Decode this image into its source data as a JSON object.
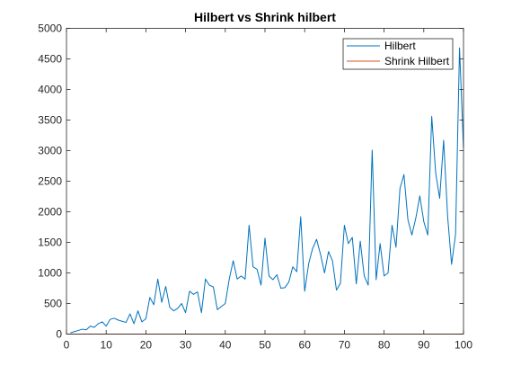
{
  "chart_data": {
    "type": "line",
    "title": "Hilbert vs Shrink hilbert",
    "xlabel": "",
    "ylabel": "",
    "xlim": [
      0,
      100
    ],
    "ylim": [
      0,
      5000
    ],
    "x_ticks": [
      0,
      10,
      20,
      30,
      40,
      50,
      60,
      70,
      80,
      90,
      100
    ],
    "y_ticks": [
      0,
      500,
      1000,
      1500,
      2000,
      2500,
      3000,
      3500,
      4000,
      4500,
      5000
    ],
    "grid": false,
    "legend_position": "top-right",
    "x": [
      1,
      2,
      3,
      4,
      5,
      6,
      7,
      8,
      9,
      10,
      11,
      12,
      13,
      14,
      15,
      16,
      17,
      18,
      19,
      20,
      21,
      22,
      23,
      24,
      25,
      26,
      27,
      28,
      29,
      30,
      31,
      32,
      33,
      34,
      35,
      36,
      37,
      38,
      39,
      40,
      41,
      42,
      43,
      44,
      45,
      46,
      47,
      48,
      49,
      50,
      51,
      52,
      53,
      54,
      55,
      56,
      57,
      58,
      59,
      60,
      61,
      62,
      63,
      64,
      65,
      66,
      67,
      68,
      69,
      70,
      71,
      72,
      73,
      74,
      75,
      76,
      77,
      78,
      79,
      80,
      81,
      82,
      83,
      84,
      85,
      86,
      87,
      88,
      89,
      90,
      91,
      92,
      93,
      94,
      95,
      96,
      97,
      98,
      99,
      100
    ],
    "series": [
      {
        "name": "Hilbert",
        "color": "#0072BD",
        "values": [
          20,
          40,
          60,
          80,
          70,
          130,
          110,
          170,
          200,
          130,
          240,
          260,
          230,
          210,
          190,
          330,
          170,
          380,
          200,
          250,
          600,
          480,
          900,
          520,
          780,
          440,
          380,
          420,
          500,
          350,
          700,
          650,
          690,
          350,
          900,
          800,
          770,
          400,
          450,
          500,
          900,
          1200,
          900,
          950,
          900,
          1780,
          1100,
          1060,
          800,
          1570,
          950,
          890,
          970,
          750,
          760,
          850,
          1100,
          1020,
          1920,
          700,
          1150,
          1400,
          1550,
          1300,
          1000,
          1350,
          1200,
          720,
          830,
          1780,
          1480,
          1580,
          820,
          1520,
          950,
          800,
          3010,
          890,
          1480,
          950,
          1000,
          1780,
          1420,
          2380,
          2610,
          1870,
          1620,
          1900,
          2260,
          1840,
          1620,
          3560,
          2630,
          2220,
          3170,
          1930,
          1140,
          1630,
          4680,
          3040
        ]
      },
      {
        "name": "Shrink Hilbert",
        "color": "#D95319",
        "values": [
          0,
          0,
          0,
          0,
          0,
          0,
          0,
          0,
          0,
          0,
          0,
          0,
          0,
          0,
          0,
          0,
          0,
          0,
          0,
          0,
          0,
          0,
          0,
          0,
          0,
          0,
          0,
          0,
          0,
          0,
          0,
          0,
          0,
          0,
          0,
          0,
          0,
          0,
          0,
          0,
          0,
          0,
          0,
          0,
          0,
          0,
          0,
          0,
          0,
          0,
          0,
          0,
          0,
          0,
          0,
          0,
          0,
          0,
          0,
          0,
          0,
          0,
          0,
          0,
          0,
          0,
          0,
          0,
          0,
          0,
          0,
          0,
          0,
          0,
          0,
          0,
          0,
          0,
          0,
          0,
          0,
          0,
          0,
          0,
          0,
          0,
          0,
          0,
          0,
          0,
          0,
          0,
          0,
          0,
          0,
          0,
          0,
          0,
          0,
          0
        ]
      }
    ]
  }
}
